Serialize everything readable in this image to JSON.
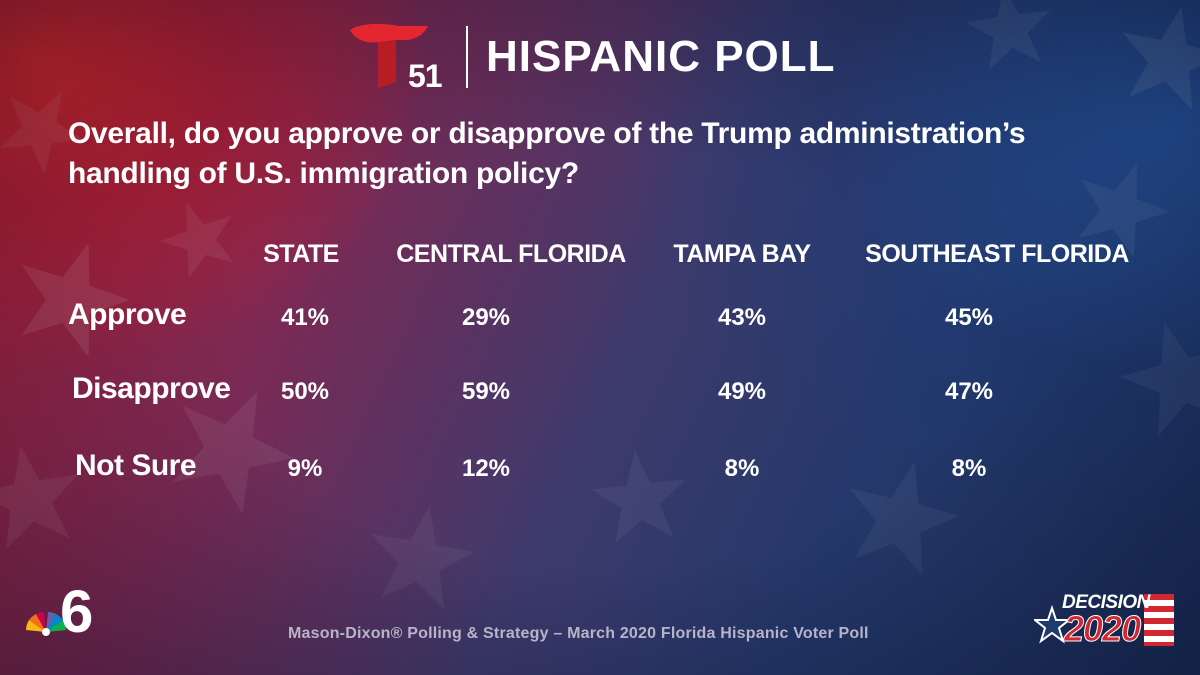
{
  "header": {
    "logo_number": "51",
    "title": "HISPANIC POLL"
  },
  "chart_data": {
    "type": "table",
    "title": "Overall, do you approve or disapprove of the Trump administration’s handling of U.S. immigration policy?",
    "columns": [
      "STATE",
      "CENTRAL FLORIDA",
      "TAMPA BAY",
      "SOUTHEAST FLORIDA"
    ],
    "rows": [
      {
        "label": "Approve",
        "values": [
          "41%",
          "29%",
          "43%",
          "45%"
        ]
      },
      {
        "label": "Disapprove",
        "values": [
          "50%",
          "59%",
          "49%",
          "47%"
        ]
      },
      {
        "label": "Not Sure",
        "values": [
          "9%",
          "12%",
          "8%",
          "8%"
        ]
      }
    ],
    "series": [
      {
        "name": "STATE",
        "values": [
          41,
          50,
          9
        ]
      },
      {
        "name": "CENTRAL FLORIDA",
        "values": [
          29,
          59,
          12
        ]
      },
      {
        "name": "TAMPA BAY",
        "values": [
          43,
          49,
          8
        ]
      },
      {
        "name": "SOUTHEAST FLORIDA",
        "values": [
          45,
          47,
          8
        ]
      }
    ]
  },
  "footer": {
    "source": "Mason-Dixon® Polling & Strategy – March 2020 Florida Hispanic Voter Poll",
    "nbc_channel": "6",
    "decision_label": "DECISION",
    "decision_year": "2020"
  },
  "colors": {
    "telemundo_red": "#e3262f",
    "source_text": "#b8b4c8",
    "flag_red": "#d22630"
  }
}
